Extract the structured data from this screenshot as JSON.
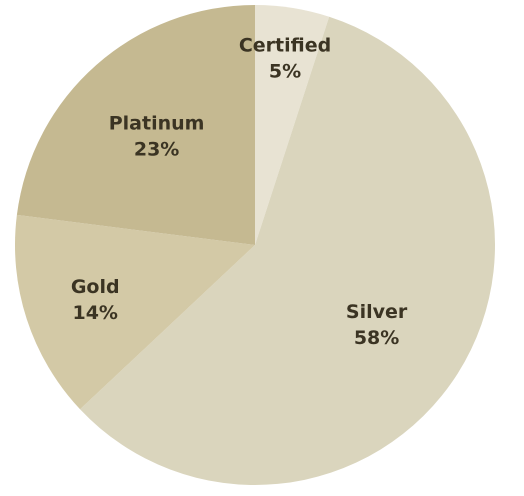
{
  "chart_data": {
    "type": "pie",
    "slices": [
      {
        "label": "Certified",
        "value": 5,
        "value_label": "5%",
        "color": "#e8e3d3"
      },
      {
        "label": "Silver",
        "value": 58,
        "value_label": "58%",
        "color": "#dad5bd"
      },
      {
        "label": "Gold",
        "value": 14,
        "value_label": "14%",
        "color": "#d3c9a6"
      },
      {
        "label": "Platinum",
        "value": 23,
        "value_label": "23%",
        "color": "#c5b991"
      }
    ],
    "start": "12 o'clock",
    "direction": "clockwise",
    "legend": "none"
  }
}
